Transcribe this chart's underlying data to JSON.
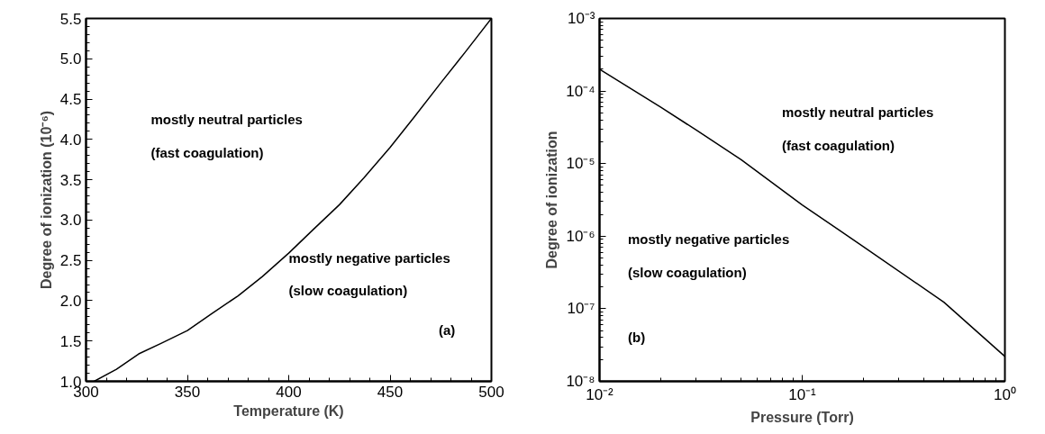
{
  "chart_data": [
    {
      "type": "line",
      "xlabel": "Temperature (K)",
      "ylabel": "Degree of ionization (10⁻⁶)",
      "x": [
        304,
        315,
        326,
        337,
        350,
        362,
        375,
        387,
        400,
        412,
        425,
        437,
        450,
        462,
        475,
        487,
        500
      ],
      "series": [
        {
          "color": "#000000",
          "values": [
            1.0,
            1.15,
            1.34,
            1.47,
            1.63,
            1.84,
            2.06,
            2.3,
            2.59,
            2.88,
            3.19,
            3.52,
            3.9,
            4.28,
            4.7,
            5.08,
            5.5
          ]
        }
      ],
      "xlim": [
        300,
        500
      ],
      "xticks": [
        300,
        350,
        400,
        450,
        500
      ],
      "ylim": [
        1.0,
        5.5
      ],
      "yticks": [
        {
          "value": 1.0,
          "label": "1.0"
        },
        {
          "value": 1.5,
          "label": "1.5"
        },
        {
          "value": 2.0,
          "label": "2.0"
        },
        {
          "value": 2.5,
          "label": "2.5"
        },
        {
          "value": 3.0,
          "label": "3.0"
        },
        {
          "value": 3.5,
          "label": "3.5"
        },
        {
          "value": 4.0,
          "label": "4.0"
        },
        {
          "value": 4.5,
          "label": "4.5"
        },
        {
          "value": 5.0,
          "label": "5.0"
        },
        {
          "value": 5.5,
          "label": "5.5"
        }
      ],
      "annotations": [
        "mostly neutral particles",
        "(fast coagulation)",
        "mostly negative particles",
        "(slow coagulation)",
        "(a)"
      ],
      "grid": false,
      "line_style": "solid"
    },
    {
      "type": "line",
      "xlabel": "Pressure (Torr)",
      "ylabel": "Degree of ionization",
      "log": "xy",
      "x": [
        0.01,
        0.02,
        0.03,
        0.05,
        0.1,
        0.2,
        0.5,
        1.0
      ],
      "series": [
        {
          "color": "#000000",
          "values": [
            0.0002,
            6e-05,
            2.9e-05,
            1.13e-05,
            2.7e-06,
            7.2e-07,
            1.23e-07,
            2.2e-08
          ]
        }
      ],
      "xlim": [
        0.01,
        1
      ],
      "xticks": [
        {
          "value": 0.01,
          "label": "10⁻²"
        },
        {
          "value": 0.1,
          "label": "10⁻¹"
        },
        {
          "value": 1,
          "label": "10⁰"
        }
      ],
      "ylim": [
        1e-08,
        0.001
      ],
      "yticks": [
        {
          "value": 1e-08,
          "label": "10⁻⁸"
        },
        {
          "value": 1e-07,
          "label": "10⁻⁷"
        },
        {
          "value": 1e-06,
          "label": "10⁻⁶"
        },
        {
          "value": 1e-05,
          "label": "10⁻⁵"
        },
        {
          "value": 0.0001,
          "label": "10⁻⁴"
        },
        {
          "value": 0.001,
          "label": "10⁻³"
        }
      ],
      "annotations": [
        "mostly neutral particles",
        "(fast coagulation)",
        "mostly negative particles",
        "(slow coagulation)",
        "(b)"
      ],
      "grid": false,
      "line_style": "solid"
    }
  ]
}
